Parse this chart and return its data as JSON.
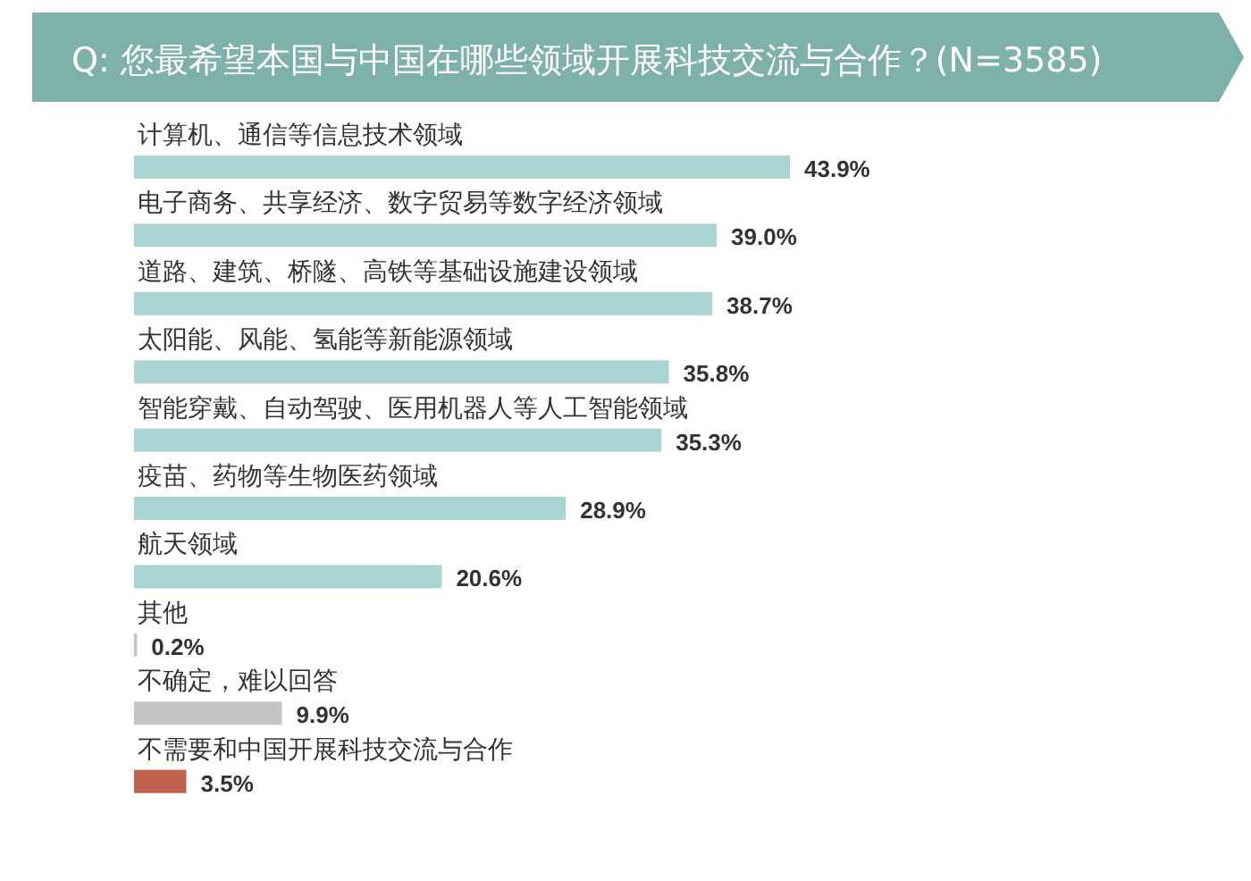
{
  "chart_data": {
    "type": "bar",
    "orientation": "horizontal",
    "title": "Q: 您最希望本国与中国在哪些领域开展科技交流与合作？(N=3585)",
    "categories": [
      "计算机、通信等信息技术领域",
      "电子商务、共享经济、数字贸易等数字经济领域",
      "道路、建筑、桥隧、高铁等基础设施建设领域",
      "太阳能、风能、氢能等新能源领域",
      "智能穿戴、自动驾驶、医用机器人等人工智能领域",
      "疫苗、药物等生物医药领域",
      "航天领域",
      "其他",
      "不确定，难以回答",
      "不需要和中国开展科技交流与合作"
    ],
    "values": [
      43.9,
      39.0,
      38.7,
      35.8,
      35.3,
      28.9,
      20.6,
      0.2,
      9.9,
      3.5
    ],
    "value_labels": [
      "43.9%",
      "39.0%",
      "38.7%",
      "35.8%",
      "35.3%",
      "28.9%",
      "20.6%",
      "0.2%",
      "9.9%",
      "3.5%"
    ],
    "colors": [
      "#a9d4d1",
      "#a9d4d1",
      "#a9d4d1",
      "#a9d4d1",
      "#a9d4d1",
      "#a9d4d1",
      "#a9d4d1",
      "#c4c4c4",
      "#c4c4c4",
      "#c0604e"
    ]
  }
}
